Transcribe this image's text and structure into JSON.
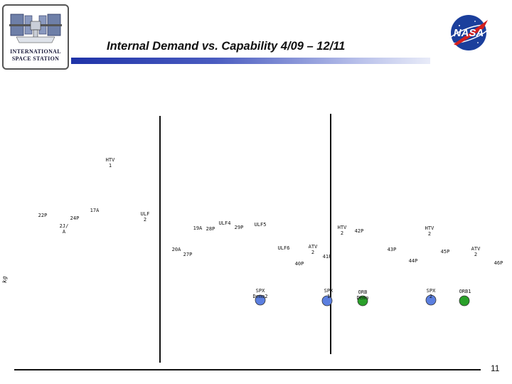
{
  "header": {
    "title": "Internal Demand vs. Capability  4/09 – 12/11",
    "logo_line1": "INTERNATIONAL",
    "logo_line2": "SPACE STATION",
    "nasa_logo": "NASA",
    "page_number": "11"
  },
  "chart_data": {
    "type": "scatter",
    "ylabel": "kg",
    "vertical_markers": 2,
    "labels": [
      "HTV 1",
      "22P",
      "24P",
      "17A",
      "2J/ A",
      "ULF 2",
      "ULF4",
      "19A",
      "28P",
      "29P",
      "ULF5",
      "20A",
      "27P",
      "ULF6",
      "ATV 2",
      "HTV 2",
      "42P",
      "40P",
      "41P",
      "43P",
      "HTV 2",
      "44P",
      "45P",
      "ATV 2",
      "46P",
      "SPX Demo2",
      "SPX 1",
      "ORB Demo",
      "SPX 2",
      "ORB1"
    ],
    "markers": [
      {
        "label": "SPX Demo2",
        "color": "#5b7fe0"
      },
      {
        "label": "SPX 1",
        "color": "#5b7fe0"
      },
      {
        "label": "ORB Demo",
        "color": "#2aa02a"
      },
      {
        "label": "SPX 2",
        "color": "#5b7fe0"
      },
      {
        "label": "ORB1",
        "color": "#2aa02a"
      }
    ]
  }
}
